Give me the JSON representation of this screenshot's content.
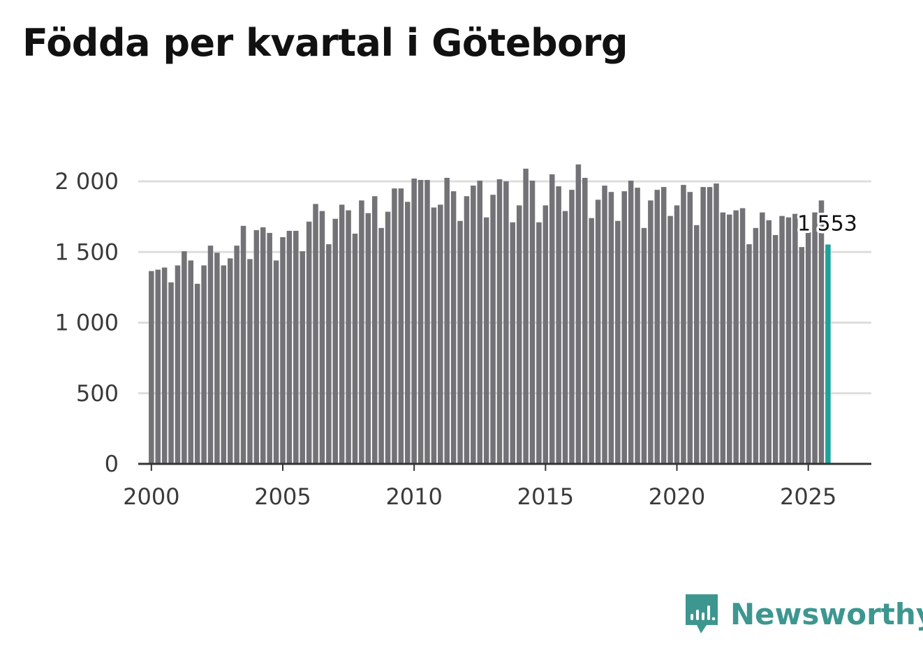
{
  "title": "Födda per kvartal i Göteborg",
  "brand": {
    "name": "Newsworthy"
  },
  "colors": {
    "bar": "#737377",
    "highlight": "#1aa39a",
    "grid": "#dddddd",
    "axis": "#333333",
    "brand": "#3d9690"
  },
  "chart_data": {
    "type": "bar",
    "title": "Födda per kvartal i Göteborg",
    "xlabel": "",
    "ylabel": "",
    "x_start_year": 2000,
    "points_per_year": 4,
    "xlim": [
      1999.5,
      2027.4
    ],
    "ylim": [
      0,
      2000
    ],
    "y_ticks": [
      0,
      500,
      1000,
      1500,
      2000
    ],
    "y_tick_labels": [
      "0",
      "500",
      "1 000",
      "1 500",
      "2 000"
    ],
    "x_ticks": [
      2000,
      2005,
      2010,
      2015,
      2020,
      2025
    ],
    "x_tick_labels": [
      "2000",
      "2005",
      "2010",
      "2015",
      "2020",
      "2025"
    ],
    "grid": true,
    "highlight_index": 103,
    "highlight_label": "1 553",
    "values": [
      1365,
      1375,
      1390,
      1285,
      1405,
      1505,
      1440,
      1275,
      1405,
      1545,
      1495,
      1405,
      1455,
      1545,
      1685,
      1450,
      1655,
      1675,
      1635,
      1440,
      1605,
      1650,
      1650,
      1505,
      1715,
      1840,
      1790,
      1555,
      1735,
      1835,
      1795,
      1630,
      1865,
      1775,
      1895,
      1670,
      1785,
      1950,
      1950,
      1855,
      2020,
      2010,
      2010,
      1815,
      1835,
      2025,
      1930,
      1720,
      1895,
      1970,
      2005,
      1745,
      1905,
      2015,
      2000,
      1710,
      1830,
      2090,
      2005,
      1710,
      1830,
      2050,
      1965,
      1790,
      1940,
      2120,
      2025,
      1740,
      1870,
      1970,
      1925,
      1720,
      1930,
      2005,
      1955,
      1670,
      1865,
      1940,
      1960,
      1755,
      1830,
      1975,
      1925,
      1690,
      1960,
      1960,
      1985,
      1780,
      1765,
      1795,
      1810,
      1555,
      1670,
      1780,
      1725,
      1620,
      1755,
      1745,
      1770,
      1535,
      1660,
      1780,
      1865,
      1553
    ]
  }
}
